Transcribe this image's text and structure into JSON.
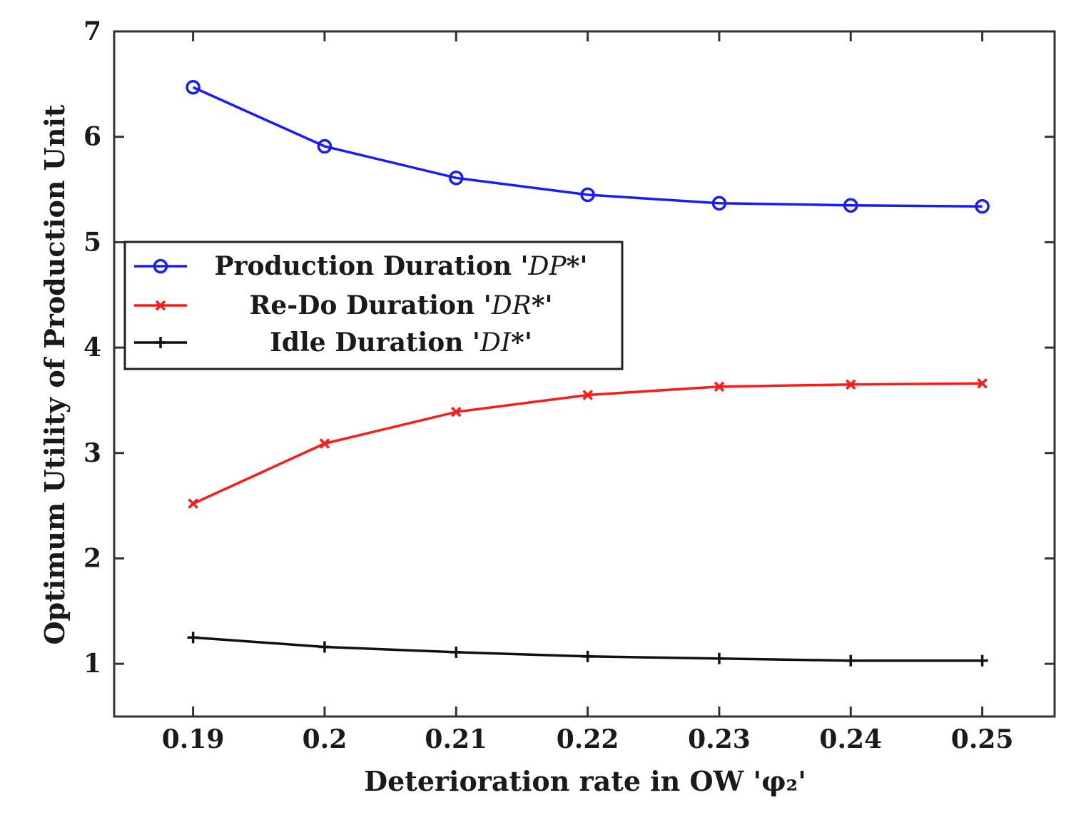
{
  "chart_data": {
    "type": "line",
    "title": "",
    "xlabel": "Deterioration rate in OW 'φ₂'",
    "ylabel": "Optimum Utility of Production Unit",
    "x": [
      0.19,
      0.2,
      0.21,
      0.22,
      0.23,
      0.24,
      0.25
    ],
    "x_tick_labels": [
      "0.19",
      "0.2",
      "0.21",
      "0.22",
      "0.23",
      "0.24",
      "0.25"
    ],
    "xlim": [
      0.184,
      0.2555
    ],
    "ylim": [
      0.5,
      7
    ],
    "y_ticks": [
      1,
      2,
      3,
      4,
      5,
      6,
      7
    ],
    "y_tick_labels": [
      "1",
      "2",
      "3",
      "4",
      "5",
      "6",
      "7"
    ],
    "grid": false,
    "legend_position": "center-left",
    "series": [
      {
        "name": "Production Duration 'DP*'",
        "legend_prefix": "Production Duration '",
        "legend_symbol": "DP",
        "legend_suffix": "*'",
        "marker": "circle",
        "color": "#1a1aff",
        "values": [
          6.47,
          5.91,
          5.61,
          5.45,
          5.37,
          5.35,
          5.34
        ]
      },
      {
        "name": "Re-Do Duration 'DR*'",
        "legend_prefix": "Re-Do Duration '",
        "legend_symbol": "DR",
        "legend_suffix": "*'",
        "marker": "x",
        "color": "#ff1a1a",
        "values": [
          2.52,
          3.09,
          3.39,
          3.55,
          3.63,
          3.65,
          3.66
        ]
      },
      {
        "name": "Idle Duration 'DI*'",
        "legend_prefix": "Idle Duration '",
        "legend_symbol": "DI",
        "legend_suffix": "*'",
        "marker": "plus",
        "color": "#111111",
        "values": [
          1.25,
          1.16,
          1.11,
          1.07,
          1.05,
          1.03,
          1.03
        ]
      }
    ]
  }
}
